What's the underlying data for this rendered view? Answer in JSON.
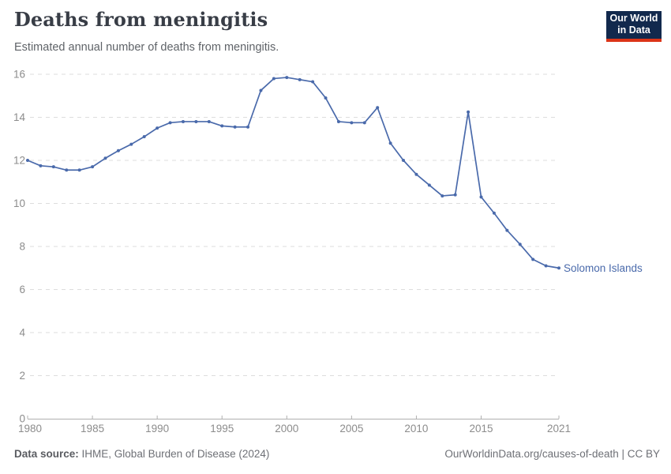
{
  "header": {
    "title": "Deaths from meningitis",
    "subtitle": "Estimated annual number of deaths from meningitis."
  },
  "logo": {
    "line1": "Our World",
    "line2": "in Data",
    "bg_color": "#12294d",
    "accent_color": "#dc3418"
  },
  "chart_data": {
    "type": "line",
    "title": "Deaths from meningitis",
    "subtitle": "Estimated annual number of deaths from meningitis.",
    "x": [
      1980,
      1981,
      1982,
      1983,
      1984,
      1985,
      1986,
      1987,
      1988,
      1989,
      1990,
      1991,
      1992,
      1993,
      1994,
      1995,
      1996,
      1997,
      1998,
      1999,
      2000,
      2001,
      2002,
      2003,
      2004,
      2005,
      2006,
      2007,
      2008,
      2009,
      2010,
      2011,
      2012,
      2013,
      2014,
      2015,
      2016,
      2017,
      2018,
      2019,
      2020,
      2021
    ],
    "series": [
      {
        "name": "Solomon Islands",
        "color": "#4a6aab",
        "values": [
          12.0,
          11.75,
          11.7,
          11.55,
          11.55,
          11.7,
          12.1,
          12.45,
          12.75,
          13.1,
          13.5,
          13.75,
          13.8,
          13.8,
          13.8,
          13.6,
          13.55,
          13.55,
          15.25,
          15.8,
          15.85,
          15.75,
          15.65,
          14.9,
          13.8,
          13.75,
          13.75,
          14.45,
          12.8,
          12.0,
          11.35,
          10.85,
          10.35,
          10.4,
          14.25,
          10.3,
          9.55,
          8.75,
          8.1,
          7.4,
          7.1,
          7.0
        ]
      }
    ],
    "end_label": "Solomon Islands",
    "xlabel": "",
    "ylabel": "",
    "xlim": [
      1980,
      2021
    ],
    "ylim": [
      0,
      16
    ],
    "xticks": [
      1980,
      1985,
      1990,
      1995,
      2000,
      2005,
      2010,
      2015,
      2021
    ],
    "yticks": [
      0,
      2,
      4,
      6,
      8,
      10,
      12,
      14,
      16
    ],
    "grid": "horizontal-dashed",
    "legend_position": "end-of-line-label",
    "styles": {
      "grid_color": "#dddddd",
      "axis_color": "#b0b0b0",
      "tick_label_color": "#8c8c8c",
      "label_font_size": 13.5
    }
  },
  "footer": {
    "source_label": "Data source:",
    "source_text": "IHME, Global Burden of Disease (2024)",
    "right_text": "OurWorldinData.org/causes-of-death | CC BY"
  }
}
